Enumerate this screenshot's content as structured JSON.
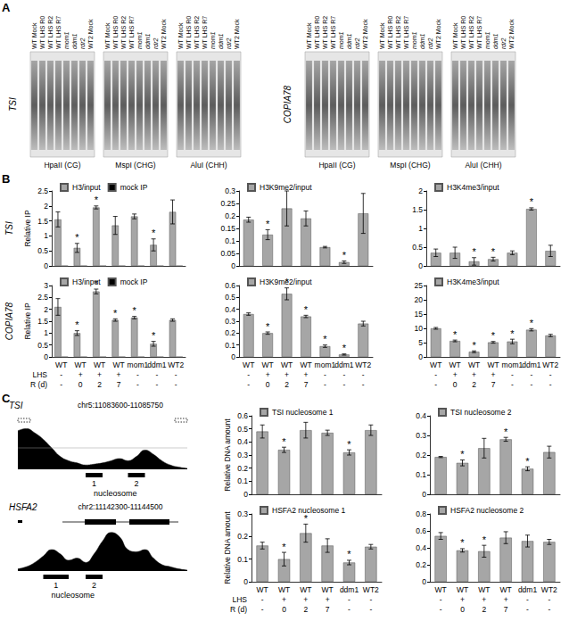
{
  "panels": [
    "A",
    "B",
    "C"
  ],
  "row_titles": [
    "LHS",
    "R (d)"
  ],
  "blots": {
    "genes": [
      "TSI",
      "COPIA78"
    ],
    "lanes": [
      "WT Mock",
      "WT LHS R0",
      "WT LHS R2",
      "WT LHS R7",
      "mom1",
      "ddm1",
      "rdr2",
      "WT2 Mock"
    ],
    "enzymes": [
      "HpaII (CG)",
      "MspI (CHG)",
      "AluI (CHH)"
    ]
  },
  "chart_data": [
    {
      "type": "bar",
      "row_label": "TSI",
      "ylabel": "Relative IP",
      "annotation": "*",
      "tick_labels": "y",
      "grid": false,
      "categories": [
        "WT",
        "WT",
        "WT",
        "WT",
        "mom1",
        "ddm1",
        "WT2"
      ],
      "series": [
        {
          "name": "H3/input",
          "color": "#a6a6a6",
          "values": [
            1.55,
            0.6,
            1.95,
            1.35,
            1.65,
            0.7,
            1.8
          ],
          "errors": [
            0.25,
            0.15,
            0.05,
            0.3,
            0.08,
            0.2,
            0.4
          ],
          "significant": [
            false,
            true,
            true,
            false,
            false,
            true,
            false
          ]
        },
        {
          "name": "mock IP",
          "color": "#000000",
          "values": [
            0.0003,
            0.0002,
            0.0003,
            0.0002,
            0.001,
            0.0002,
            0.0002
          ]
        }
      ],
      "ylim": [
        0,
        2.5
      ],
      "yticks": [
        0,
        0.5,
        1,
        1.5,
        2,
        2.5
      ]
    },
    {
      "type": "bar",
      "annotation": "*",
      "tick_labels": "y",
      "grid": false,
      "categories": [
        "WT",
        "WT",
        "WT",
        "WT",
        "mom1",
        "ddm1",
        "WT2"
      ],
      "series": [
        {
          "name": "H3K9me2/input",
          "color": "#a6a6a6",
          "values": [
            0.185,
            0.125,
            0.23,
            0.19,
            0.075,
            0.015,
            0.21
          ],
          "errors": [
            0.01,
            0.02,
            0.07,
            0.03,
            0.003,
            0.005,
            0.08
          ],
          "significant": [
            false,
            true,
            false,
            false,
            false,
            true,
            false
          ]
        }
      ],
      "ylim": [
        0,
        0.3
      ],
      "yticks": [
        0,
        0.05,
        0.1,
        0.15,
        0.2,
        0.25,
        0.3
      ]
    },
    {
      "type": "bar",
      "annotation": "*",
      "tick_labels": "y",
      "grid": false,
      "categories": [
        "WT",
        "WT",
        "WT",
        "WT",
        "mom1",
        "ddm1",
        "WT2"
      ],
      "series": [
        {
          "name": "H3K4me3/input",
          "color": "#a6a6a6",
          "values": [
            0.35,
            0.35,
            0.12,
            0.18,
            0.35,
            1.52,
            0.4
          ],
          "errors": [
            0.1,
            0.15,
            0.1,
            0.05,
            0.05,
            0.03,
            0.15
          ],
          "significant": [
            false,
            false,
            true,
            true,
            false,
            true,
            false
          ]
        }
      ],
      "ylim": [
        0,
        2
      ],
      "yticks": [
        0,
        0.5,
        1,
        1.5,
        2
      ]
    },
    {
      "type": "bar",
      "row_label": "COPIA78",
      "ylabel": "Relative IP",
      "annotation": "*",
      "grid": false,
      "categories": [
        "WT",
        "WT",
        "WT",
        "WT",
        "mom1",
        "ddm1",
        "WT2"
      ],
      "category_rows": [
        [
          "-",
          "+",
          "+",
          "+",
          "-",
          "-",
          "-"
        ],
        [
          "-",
          "0",
          "2",
          "7",
          "-",
          "-",
          "-"
        ]
      ],
      "series": [
        {
          "name": "H3/input",
          "color": "#a6a6a6",
          "values": [
            2.1,
            1.0,
            2.75,
            1.55,
            1.65,
            0.55,
            1.55
          ],
          "errors": [
            0.35,
            0.1,
            0.1,
            0.05,
            0.05,
            0.1,
            0.05
          ],
          "significant": [
            false,
            true,
            true,
            true,
            true,
            true,
            false
          ]
        },
        {
          "name": "mock IP",
          "color": "#000000",
          "values": [
            0.0004,
            0.0003,
            0.0003,
            0.0002,
            0.0003,
            0.0002,
            0.0003
          ]
        }
      ],
      "ylim": [
        0,
        3
      ],
      "yticks": [
        0,
        0.5,
        1,
        1.5,
        2,
        2.5,
        3
      ]
    },
    {
      "type": "bar",
      "annotation": "*",
      "grid": false,
      "categories": [
        "WT",
        "WT",
        "WT",
        "WT",
        "mom1",
        "ddm1",
        "WT2"
      ],
      "category_rows": [
        [
          "-",
          "+",
          "+",
          "+",
          "-",
          "-",
          "-"
        ],
        [
          "-",
          "0",
          "2",
          "7",
          "-",
          "-",
          "-"
        ]
      ],
      "series": [
        {
          "name": "H3K9me2/input",
          "color": "#a6a6a6",
          "values": [
            0.36,
            0.2,
            0.53,
            0.34,
            0.09,
            0.02,
            0.28
          ],
          "errors": [
            0.01,
            0.01,
            0.05,
            0.01,
            0.01,
            0.005,
            0.02
          ],
          "significant": [
            false,
            true,
            true,
            true,
            true,
            true,
            false
          ]
        }
      ],
      "ylim": [
        0,
        0.6
      ],
      "yticks": [
        0,
        0.1,
        0.2,
        0.3,
        0.4,
        0.5,
        0.6
      ]
    },
    {
      "type": "bar",
      "annotation": "*",
      "grid": false,
      "categories": [
        "WT",
        "WT",
        "WT",
        "WT",
        "mom1",
        "ddm1",
        "WT2"
      ],
      "category_rows": [
        [
          "-",
          "+",
          "+",
          "+",
          "-",
          "-",
          "-"
        ],
        [
          "-",
          "0",
          "2",
          "7",
          "-",
          "-",
          "-"
        ]
      ],
      "series": [
        {
          "name": "H3K4me3/input",
          "color": "#a6a6a6",
          "values": [
            10,
            5.6,
            1.8,
            5.1,
            5.4,
            9.5,
            7.5
          ],
          "errors": [
            0.3,
            0.3,
            0.3,
            0.3,
            0.8,
            0.4,
            0.4
          ],
          "significant": [
            false,
            true,
            true,
            true,
            true,
            true,
            false
          ]
        }
      ],
      "ylim": [
        0,
        25
      ],
      "yticks": [
        0,
        5,
        10,
        15,
        20,
        25
      ]
    },
    {
      "type": "bar",
      "ylabel": "Relative DNA amount",
      "annotation": "*",
      "tick_labels": "y",
      "grid": false,
      "categories": [
        "WT",
        "WT",
        "WT",
        "WT",
        "ddm1",
        "WT2"
      ],
      "series": [
        {
          "name": "TSI nucleosome 1",
          "color": "#a6a6a6",
          "values": [
            0.48,
            0.34,
            0.49,
            0.47,
            0.32,
            0.49
          ],
          "errors": [
            0.05,
            0.02,
            0.06,
            0.02,
            0.02,
            0.04
          ],
          "significant": [
            false,
            true,
            false,
            false,
            true,
            false
          ]
        }
      ],
      "ylim": [
        0,
        0.6
      ],
      "yticks": [
        0,
        0.1,
        0.2,
        0.3,
        0.4,
        0.5,
        0.6
      ]
    },
    {
      "type": "bar",
      "annotation": "*",
      "tick_labels": "y",
      "grid": false,
      "categories": [
        "WT",
        "WT",
        "WT",
        "WT",
        "ddm1",
        "WT2"
      ],
      "series": [
        {
          "name": "TSI nucleosome 2",
          "color": "#a6a6a6",
          "values": [
            0.19,
            0.16,
            0.235,
            0.28,
            0.13,
            0.215
          ],
          "errors": [
            0.003,
            0.015,
            0.05,
            0.01,
            0.01,
            0.03
          ],
          "significant": [
            false,
            true,
            false,
            true,
            true,
            false
          ]
        }
      ],
      "ylim": [
        0,
        0.4
      ],
      "yticks": [
        0,
        0.1,
        0.2,
        0.3,
        0.4
      ]
    },
    {
      "type": "bar",
      "ylabel": "Relative DNA amount",
      "annotation": "*",
      "grid": false,
      "categories": [
        "WT",
        "WT",
        "WT",
        "WT",
        "ddm1",
        "WT2"
      ],
      "category_rows": [
        [
          "-",
          "+",
          "+",
          "+",
          "-",
          "-"
        ],
        [
          "-",
          "0",
          "2",
          "7",
          "-",
          "-"
        ]
      ],
      "series": [
        {
          "name": "HSFA2 nucleosome 1",
          "color": "#a6a6a6",
          "values": [
            0.16,
            0.1,
            0.215,
            0.16,
            0.085,
            0.155
          ],
          "errors": [
            0.015,
            0.03,
            0.04,
            0.03,
            0.01,
            0.01
          ],
          "significant": [
            false,
            true,
            true,
            false,
            true,
            false
          ]
        }
      ],
      "ylim": [
        0,
        0.3
      ],
      "yticks": [
        0,
        0.1,
        0.2,
        0.3
      ]
    },
    {
      "type": "bar",
      "annotation": "*",
      "grid": false,
      "categories": [
        "WT",
        "WT",
        "WT",
        "WT",
        "ddm1",
        "WT2"
      ],
      "category_rows": [
        [
          "-",
          "+",
          "+",
          "+",
          "-",
          "-"
        ],
        [
          "-",
          "0",
          "2",
          "7",
          "-",
          "-"
        ]
      ],
      "series": [
        {
          "name": "HSFA2 nucleosome 2",
          "color": "#a6a6a6",
          "values": [
            0.54,
            0.37,
            0.36,
            0.52,
            0.48,
            0.47
          ],
          "errors": [
            0.04,
            0.02,
            0.07,
            0.07,
            0.07,
            0.03
          ],
          "significant": [
            false,
            true,
            true,
            false,
            false,
            false
          ]
        }
      ],
      "ylim": [
        0,
        0.8
      ],
      "yticks": [
        0,
        0.2,
        0.4,
        0.6,
        0.8
      ]
    },
    {
      "type": "area",
      "gene": "TSI",
      "region": "chr5:11083600-11085750",
      "color": "#000000",
      "tick_labels": false,
      "x": [
        0,
        1,
        2,
        3,
        4,
        5,
        6,
        7,
        8,
        9,
        10,
        11,
        12,
        13,
        14,
        15,
        16,
        17,
        18,
        19,
        20
      ],
      "values": [
        0.9,
        0.95,
        0.85,
        0.7,
        0.5,
        0.3,
        0.2,
        0.15,
        0.1,
        0.12,
        0.15,
        0.2,
        0.25,
        0.2,
        0.3,
        0.45,
        0.35,
        0.2,
        0.1,
        0.05,
        0.02
      ],
      "xlim": [
        0,
        20
      ],
      "ylim": [
        0,
        1
      ],
      "nucleosomes": [
        {
          "label": "1",
          "start": 8,
          "end": 10
        },
        {
          "label": "2",
          "start": 13,
          "end": 15
        }
      ],
      "annotation": "nucleosome"
    },
    {
      "type": "area",
      "gene": "HSFA2",
      "region": "chr2:11142300-11144500",
      "color": "#000000",
      "tick_labels": false,
      "x": [
        0,
        1,
        2,
        3,
        4,
        5,
        6,
        7,
        8,
        9,
        10,
        11,
        12,
        13,
        14,
        15,
        16,
        17,
        18,
        19,
        20
      ],
      "values": [
        0.05,
        0.1,
        0.2,
        0.35,
        0.5,
        0.4,
        0.25,
        0.3,
        0.2,
        0.4,
        0.7,
        0.9,
        0.8,
        0.5,
        0.45,
        0.5,
        0.3,
        0.15,
        0.1,
        0.05,
        0.02
      ],
      "xlim": [
        0,
        20
      ],
      "ylim": [
        0,
        1
      ],
      "nucleosomes": [
        {
          "label": "1",
          "start": 3,
          "end": 6
        },
        {
          "label": "2",
          "start": 8,
          "end": 10
        }
      ],
      "annotation": "nucleosome"
    }
  ]
}
